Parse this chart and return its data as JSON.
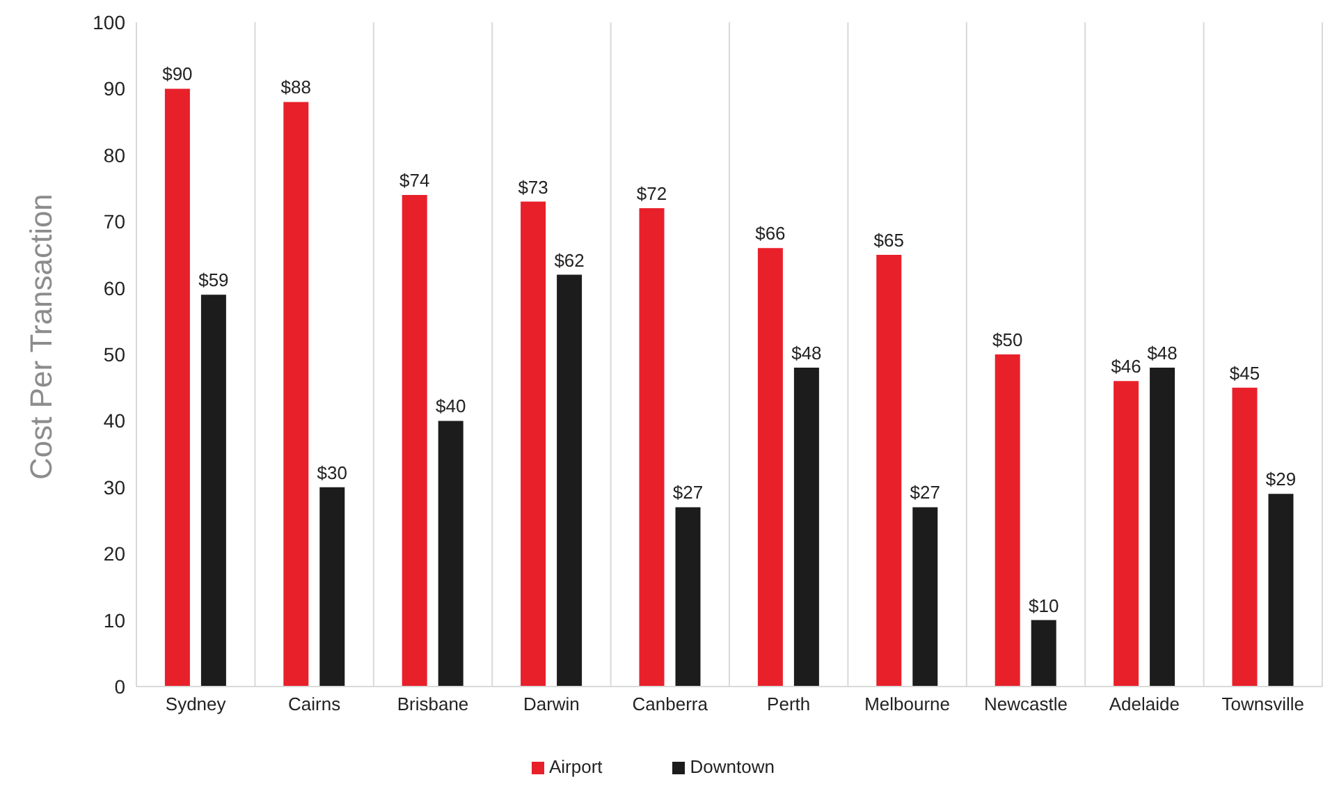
{
  "chart_data": {
    "type": "bar",
    "ylabel": "Cost Per Transaction",
    "categories": [
      "Sydney",
      "Cairns",
      "Brisbane",
      "Darwin",
      "Canberra",
      "Perth",
      "Melbourne",
      "Newcastle",
      "Adelaide",
      "Townsville"
    ],
    "series": [
      {
        "name": "Airport",
        "color": "#e8202a",
        "values": [
          90,
          88,
          74,
          73,
          72,
          66,
          65,
          50,
          46,
          45
        ],
        "value_labels": [
          "$90",
          "$88",
          "$74",
          "$73",
          "$72",
          "$66",
          "$65",
          "$50",
          "$46",
          "$45"
        ]
      },
      {
        "name": "Downtown",
        "color": "#1c1c1c",
        "values": [
          59,
          30,
          40,
          62,
          27,
          48,
          27,
          10,
          48,
          29
        ],
        "value_labels": [
          "$59",
          "$30",
          "$40",
          "$62",
          "$27",
          "$48",
          "$27",
          "$10",
          "$48",
          "$29"
        ]
      }
    ],
    "ylim": [
      0,
      100
    ],
    "yticks": [
      0,
      10,
      20,
      30,
      40,
      50,
      60,
      70,
      80,
      90,
      100
    ],
    "grid": "x",
    "legend": "bottom"
  }
}
